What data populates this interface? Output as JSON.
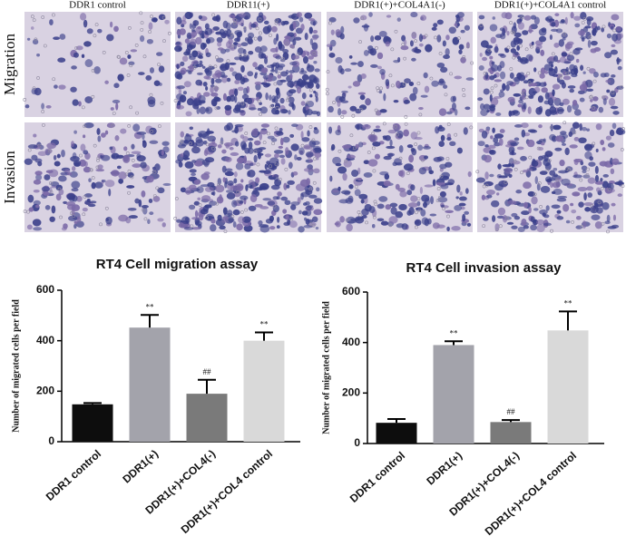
{
  "panels": {
    "columns": [
      "DDR1 control",
      "DDR11(+)",
      "DDR1(+)+COL4A1(-)",
      "DDR1(+)+COL4A1 control"
    ],
    "rows": [
      "Migration",
      "Invasion"
    ]
  },
  "chart_data": [
    {
      "type": "bar",
      "title": "RT4 Cell migration assay",
      "ylabel": "Number of migrated cells per field",
      "categories": [
        "DDR1 control",
        "DDR1(+)",
        "DDR1(+)+COL4(-)",
        "DDR1(+)+COL4 control"
      ],
      "values": [
        148,
        452,
        190,
        400
      ],
      "errors": [
        5,
        50,
        55,
        33
      ],
      "annotations": [
        null,
        "**",
        "##",
        "**"
      ],
      "colors": [
        "#0d0d0d",
        "#a3a3ab",
        "#7a7a7a",
        "#d9d9d9"
      ],
      "ylim": [
        0,
        600
      ],
      "yticks": [
        0,
        200,
        400,
        600
      ]
    },
    {
      "type": "bar",
      "title": "RT4 Cell invasion assay",
      "ylabel": "Number of migrated cells per field",
      "categories": [
        "DDR1 control",
        "DDR1(+)",
        "DDR1(+)+COL4(-)",
        "DDR1(+)+COL4 control"
      ],
      "values": [
        82,
        390,
        85,
        448
      ],
      "errors": [
        15,
        15,
        8,
        75
      ],
      "annotations": [
        null,
        "**",
        "##",
        "**"
      ],
      "colors": [
        "#0d0d0d",
        "#a3a3ab",
        "#7a7a7a",
        "#d9d9d9"
      ],
      "ylim": [
        0,
        600
      ],
      "yticks": [
        0,
        200,
        400,
        600
      ]
    }
  ]
}
